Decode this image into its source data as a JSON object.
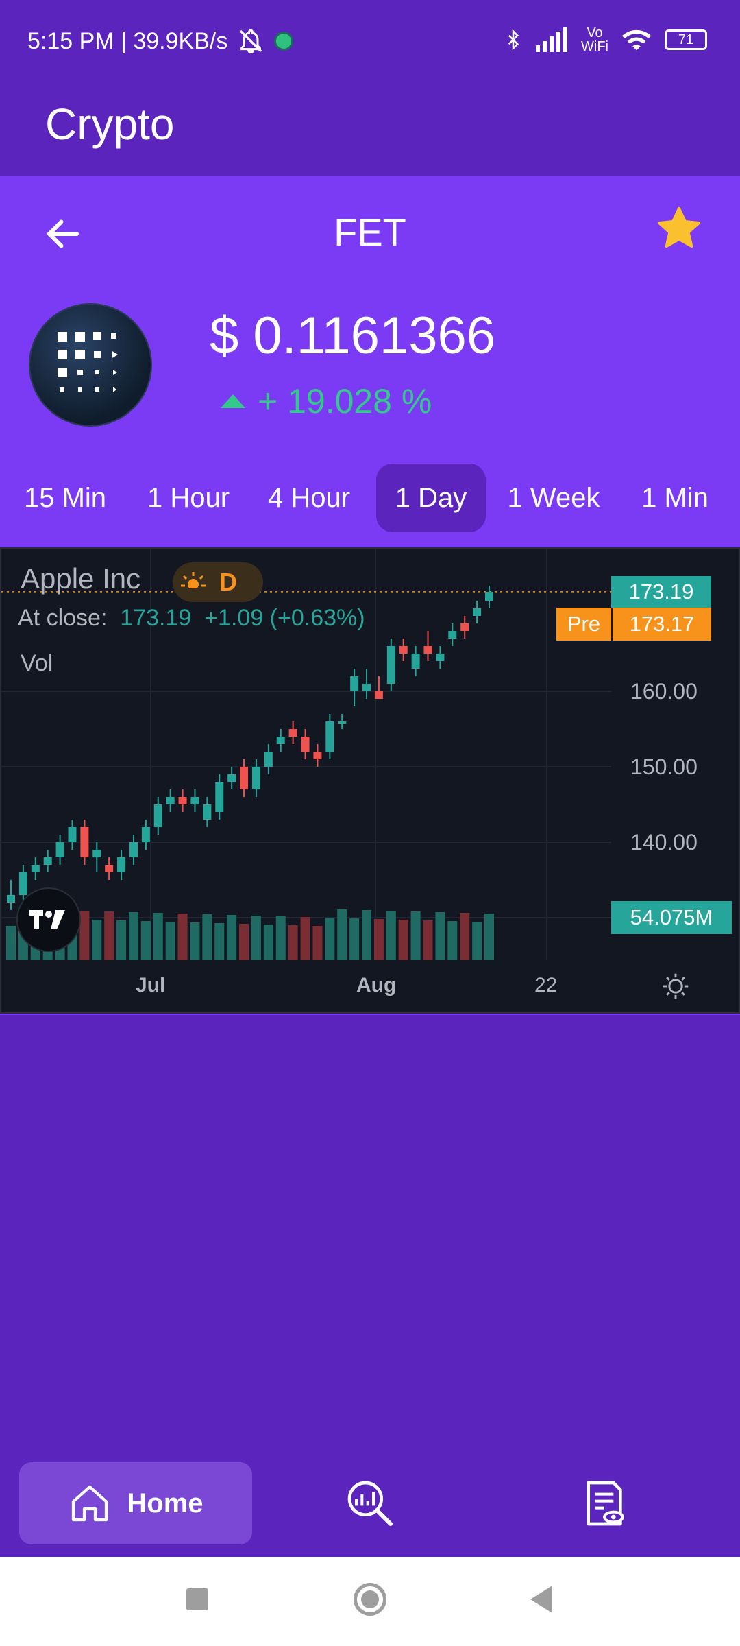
{
  "status_bar": {
    "time_speed": "5:15 PM | 39.9KB/s",
    "network": "Vo WiFi",
    "battery": "71"
  },
  "app": {
    "title": "Crypto"
  },
  "coin": {
    "symbol": "FET",
    "price": "$ 0.1161366",
    "change": "+ 19.028 %"
  },
  "tabs": [
    {
      "label": "15 Min"
    },
    {
      "label": "1 Hour"
    },
    {
      "label": "4 Hour"
    },
    {
      "label": "1 Day",
      "active": true
    },
    {
      "label": "1 Week"
    },
    {
      "label": "1 Min"
    }
  ],
  "chart_data": {
    "type": "candlestick",
    "title": "Apple Inc",
    "interval": "D",
    "close_label": "At close:",
    "close_value": "173.19",
    "close_change": "+1.09 (+0.63%)",
    "volume_label": "Vol",
    "x_ticks": [
      "Jul",
      "Aug",
      "22"
    ],
    "y_ticks": [
      "160.00",
      "150.00",
      "140.00"
    ],
    "price_tag": "173.19",
    "pre_label": "Pre",
    "pre_price": "173.17",
    "volume_tag": "54.075M",
    "up_color": "#26a69a",
    "down_color": "#ef5350",
    "ylim": [
      128,
      181
    ],
    "candles": [
      {
        "o": 132,
        "h": 135,
        "l": 131,
        "c": 133
      },
      {
        "o": 133,
        "h": 137,
        "l": 132,
        "c": 136
      },
      {
        "o": 136,
        "h": 138,
        "l": 135,
        "c": 137
      },
      {
        "o": 137,
        "h": 139,
        "l": 136,
        "c": 138
      },
      {
        "o": 138,
        "h": 141,
        "l": 137,
        "c": 140
      },
      {
        "o": 140,
        "h": 143,
        "l": 139,
        "c": 142
      },
      {
        "o": 142,
        "h": 143,
        "l": 137,
        "c": 138
      },
      {
        "o": 138,
        "h": 140,
        "l": 136,
        "c": 139
      },
      {
        "o": 137,
        "h": 138,
        "l": 135,
        "c": 136
      },
      {
        "o": 136,
        "h": 139,
        "l": 135,
        "c": 138
      },
      {
        "o": 138,
        "h": 141,
        "l": 137,
        "c": 140
      },
      {
        "o": 140,
        "h": 143,
        "l": 139,
        "c": 142
      },
      {
        "o": 142,
        "h": 146,
        "l": 141,
        "c": 145
      },
      {
        "o": 145,
        "h": 147,
        "l": 144,
        "c": 146
      },
      {
        "o": 146,
        "h": 147,
        "l": 144,
        "c": 145
      },
      {
        "o": 145,
        "h": 147,
        "l": 144,
        "c": 146
      },
      {
        "o": 143,
        "h": 146,
        "l": 142,
        "c": 145
      },
      {
        "o": 144,
        "h": 149,
        "l": 143,
        "c": 148
      },
      {
        "o": 148,
        "h": 150,
        "l": 147,
        "c": 149
      },
      {
        "o": 150,
        "h": 151,
        "l": 146,
        "c": 147
      },
      {
        "o": 147,
        "h": 151,
        "l": 146,
        "c": 150
      },
      {
        "o": 150,
        "h": 153,
        "l": 149,
        "c": 152
      },
      {
        "o": 153,
        "h": 155,
        "l": 152,
        "c": 154
      },
      {
        "o": 155,
        "h": 156,
        "l": 153,
        "c": 154
      },
      {
        "o": 154,
        "h": 155,
        "l": 151,
        "c": 152
      },
      {
        "o": 152,
        "h": 153,
        "l": 150,
        "c": 151
      },
      {
        "o": 152,
        "h": 157,
        "l": 151,
        "c": 156
      },
      {
        "o": 156,
        "h": 157,
        "l": 155,
        "c": 156
      },
      {
        "o": 160,
        "h": 163,
        "l": 158,
        "c": 162
      },
      {
        "o": 160,
        "h": 163,
        "l": 159,
        "c": 161
      },
      {
        "o": 160,
        "h": 162,
        "l": 159,
        "c": 159
      },
      {
        "o": 161,
        "h": 167,
        "l": 160,
        "c": 166
      },
      {
        "o": 166,
        "h": 167,
        "l": 164,
        "c": 165
      },
      {
        "o": 163,
        "h": 166,
        "l": 162,
        "c": 165
      },
      {
        "o": 166,
        "h": 168,
        "l": 164,
        "c": 165
      },
      {
        "o": 164,
        "h": 166,
        "l": 163,
        "c": 165
      },
      {
        "o": 167,
        "h": 169,
        "l": 166,
        "c": 168
      },
      {
        "o": 169,
        "h": 170,
        "l": 167,
        "c": 168
      },
      {
        "o": 170,
        "h": 172,
        "l": 169,
        "c": 171
      },
      {
        "o": 172,
        "h": 174,
        "l": 171,
        "c": 173.19
      }
    ]
  },
  "nav": {
    "home_label": "Home"
  }
}
